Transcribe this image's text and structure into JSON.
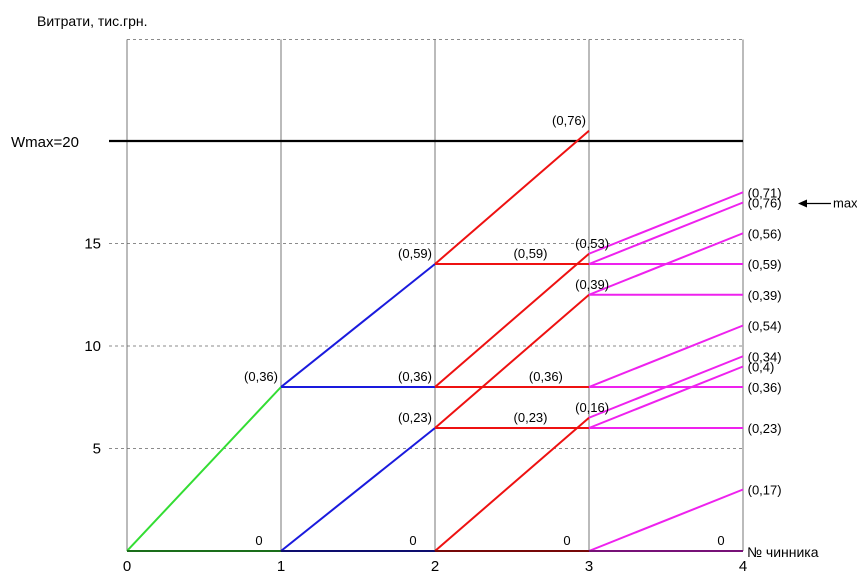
{
  "chart_data": {
    "type": "line",
    "ylabel": "Витрати, тис.грн.",
    "xlabel": "№ чинника",
    "xlim": [
      0,
      4
    ],
    "ylim": [
      0,
      25
    ],
    "x_ticks": [
      "0",
      "1",
      "2",
      "3",
      "4"
    ],
    "y_ticks": [
      {
        "value": 5,
        "label": "5"
      },
      {
        "value": 10,
        "label": "10"
      },
      {
        "value": 15,
        "label": "15"
      }
    ],
    "grid": true,
    "reference_line": {
      "value": 20,
      "label": "Wmax=20",
      "color": "#000000"
    },
    "series_colors": {
      "stage1": "#33dd33",
      "stage2": "#1a1add",
      "stage3": "#ee1111",
      "stage4": "#ee22ee"
    },
    "segments": [
      {
        "stage": "stage1",
        "from": [
          0,
          0
        ],
        "to": [
          1,
          8
        ]
      },
      {
        "stage": "stage1",
        "from": [
          0,
          0
        ],
        "to": [
          1,
          0
        ]
      },
      {
        "stage": "stage2",
        "from": [
          1,
          0
        ],
        "to": [
          2,
          0
        ]
      },
      {
        "stage": "stage2",
        "from": [
          1,
          0
        ],
        "to": [
          2,
          6
        ]
      },
      {
        "stage": "stage2",
        "from": [
          1,
          8
        ],
        "to": [
          2,
          8
        ]
      },
      {
        "stage": "stage2",
        "from": [
          1,
          8
        ],
        "to": [
          2,
          14
        ]
      },
      {
        "stage": "stage3",
        "from": [
          2,
          0
        ],
        "to": [
          3,
          0
        ]
      },
      {
        "stage": "stage3",
        "from": [
          2,
          0
        ],
        "to": [
          3,
          6.5
        ]
      },
      {
        "stage": "stage3",
        "from": [
          2,
          6
        ],
        "to": [
          3,
          6
        ]
      },
      {
        "stage": "stage3",
        "from": [
          2,
          6
        ],
        "to": [
          3,
          12.5
        ]
      },
      {
        "stage": "stage3",
        "from": [
          2,
          8
        ],
        "to": [
          3,
          8
        ]
      },
      {
        "stage": "stage3",
        "from": [
          2,
          8
        ],
        "to": [
          3,
          14.5
        ]
      },
      {
        "stage": "stage3",
        "from": [
          2,
          14
        ],
        "to": [
          3,
          14
        ]
      },
      {
        "stage": "stage3",
        "from": [
          2,
          14
        ],
        "to": [
          3,
          20.5
        ]
      },
      {
        "stage": "stage4",
        "from": [
          3,
          0
        ],
        "to": [
          4,
          0
        ]
      },
      {
        "stage": "stage4",
        "from": [
          3,
          0
        ],
        "to": [
          4,
          3
        ]
      },
      {
        "stage": "stage4",
        "from": [
          3,
          6
        ],
        "to": [
          4,
          6
        ]
      },
      {
        "stage": "stage4",
        "from": [
          3,
          6
        ],
        "to": [
          4,
          9
        ]
      },
      {
        "stage": "stage4",
        "from": [
          3,
          6.5
        ],
        "to": [
          4,
          9.5
        ]
      },
      {
        "stage": "stage4",
        "from": [
          3,
          8
        ],
        "to": [
          4,
          8
        ]
      },
      {
        "stage": "stage4",
        "from": [
          3,
          8
        ],
        "to": [
          4,
          11
        ]
      },
      {
        "stage": "stage4",
        "from": [
          3,
          12.5
        ],
        "to": [
          4,
          12.5
        ]
      },
      {
        "stage": "stage4",
        "from": [
          3,
          12.5
        ],
        "to": [
          4,
          15.5
        ]
      },
      {
        "stage": "stage4",
        "from": [
          3,
          14
        ],
        "to": [
          4,
          14
        ]
      },
      {
        "stage": "stage4",
        "from": [
          3,
          14
        ],
        "to": [
          4,
          17
        ]
      },
      {
        "stage": "stage4",
        "from": [
          3,
          14.5
        ],
        "to": [
          4,
          17.5
        ]
      }
    ],
    "annotations": [
      {
        "text": "0",
        "x": 0.9,
        "y": 0,
        "anchor": "end",
        "pos": "above"
      },
      {
        "text": "0",
        "x": 1.9,
        "y": 0,
        "anchor": "end",
        "pos": "above"
      },
      {
        "text": "0",
        "x": 2.9,
        "y": 0,
        "anchor": "end",
        "pos": "above"
      },
      {
        "text": "0",
        "x": 3.9,
        "y": 0,
        "anchor": "end",
        "pos": "above"
      },
      {
        "text": "(0,36)",
        "x": 1,
        "y": 8,
        "anchor": "end",
        "pos": "above"
      },
      {
        "text": "(0,59)",
        "x": 2,
        "y": 14,
        "anchor": "end",
        "pos": "above"
      },
      {
        "text": "(0,23)",
        "x": 2,
        "y": 6,
        "anchor": "end",
        "pos": "above"
      },
      {
        "text": "(0,36)",
        "x": 2,
        "y": 8,
        "anchor": "end",
        "pos": "above"
      },
      {
        "text": "(0,76)",
        "x": 3,
        "y": 20.5,
        "anchor": "end",
        "pos": "above"
      },
      {
        "text": "(0,59)",
        "x": 2.75,
        "y": 14,
        "anchor": "end",
        "pos": "above"
      },
      {
        "text": "(0,53)",
        "x": 3.15,
        "y": 14.5,
        "anchor": "end",
        "pos": "above"
      },
      {
        "text": "(0,39)",
        "x": 3.15,
        "y": 12.5,
        "anchor": "end",
        "pos": "above"
      },
      {
        "text": "(0,36)",
        "x": 2.85,
        "y": 8,
        "anchor": "end",
        "pos": "above"
      },
      {
        "text": "(0,23)",
        "x": 2.75,
        "y": 6,
        "anchor": "end",
        "pos": "above"
      },
      {
        "text": "(0,16)",
        "x": 3.15,
        "y": 6.5,
        "anchor": "end",
        "pos": "above"
      },
      {
        "text": "(0,71)",
        "x": 4.03,
        "y": 17.5,
        "anchor": "start",
        "pos": "right"
      },
      {
        "text": "(0,76)",
        "x": 4.03,
        "y": 17.0,
        "anchor": "start",
        "pos": "right"
      },
      {
        "text": "(0,56)",
        "x": 4.03,
        "y": 15.5,
        "anchor": "start",
        "pos": "right"
      },
      {
        "text": "(0,59)",
        "x": 4.03,
        "y": 14.0,
        "anchor": "start",
        "pos": "right"
      },
      {
        "text": "(0,39)",
        "x": 4.03,
        "y": 12.5,
        "anchor": "start",
        "pos": "right"
      },
      {
        "text": "(0,54)",
        "x": 4.03,
        "y": 11.0,
        "anchor": "start",
        "pos": "right"
      },
      {
        "text": "(0,34)",
        "x": 4.03,
        "y": 9.5,
        "anchor": "start",
        "pos": "right"
      },
      {
        "text": "(0,4)",
        "x": 4.03,
        "y": 9.0,
        "anchor": "start",
        "pos": "right"
      },
      {
        "text": "(0,36)",
        "x": 4.03,
        "y": 8.0,
        "anchor": "start",
        "pos": "right"
      },
      {
        "text": "(0,23)",
        "x": 4.03,
        "y": 6.0,
        "anchor": "start",
        "pos": "right"
      },
      {
        "text": "(0,17)",
        "x": 4.03,
        "y": 3.0,
        "anchor": "start",
        "pos": "right"
      }
    ],
    "max_marker": {
      "text": "max",
      "x": 4,
      "y": 17.0
    }
  }
}
